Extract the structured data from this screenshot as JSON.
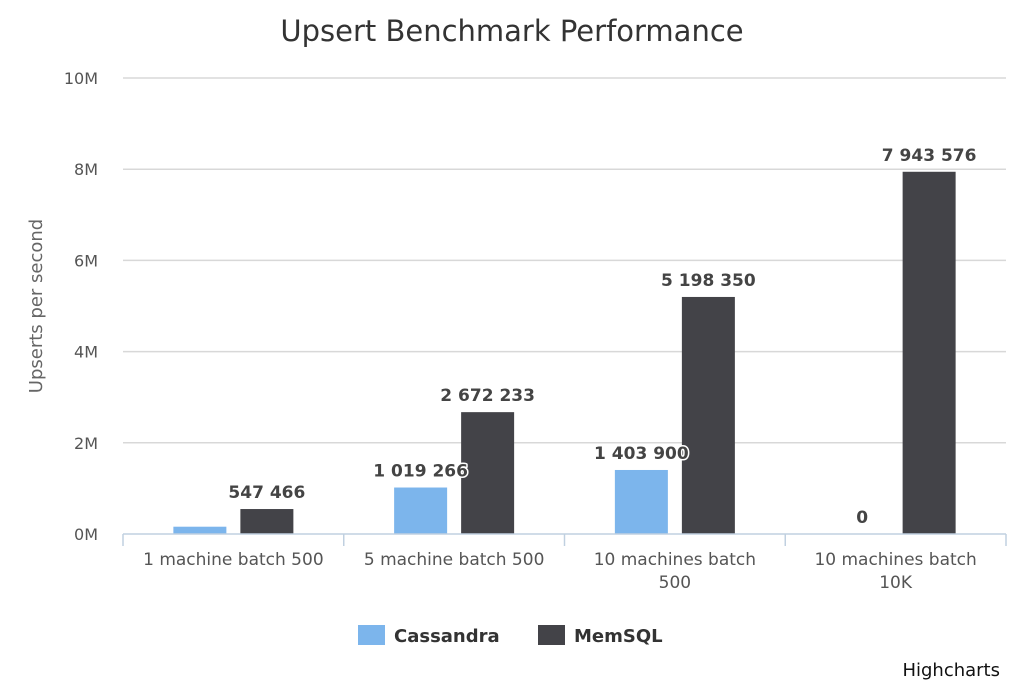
{
  "chart_data": {
    "type": "bar",
    "title": "Upsert Benchmark Performance",
    "xlabel": "",
    "ylabel": "Upserts per second",
    "categories": [
      [
        "1 machine batch 500"
      ],
      [
        "5 machine batch 500"
      ],
      [
        "10 machines batch",
        "500"
      ],
      [
        "10 machines batch",
        "10K"
      ]
    ],
    "series": [
      {
        "name": "Cassandra",
        "color": "#7cb5ec",
        "values": [
          160000,
          1019266,
          1403900,
          0
        ],
        "data_labels": [
          "",
          "1 019 266",
          "1 403 900",
          "0"
        ]
      },
      {
        "name": "MemSQL",
        "color": "#434348",
        "values": [
          547466,
          2672233,
          5198350,
          7943576
        ],
        "data_labels": [
          "547 466",
          "2 672 233",
          "5 198 350",
          "7 943 576"
        ]
      }
    ],
    "ylim": [
      0,
      10000000
    ],
    "y_ticks": [
      {
        "value": 0,
        "label": "0M"
      },
      {
        "value": 2000000,
        "label": "2M"
      },
      {
        "value": 4000000,
        "label": "4M"
      },
      {
        "value": 6000000,
        "label": "6M"
      },
      {
        "value": 8000000,
        "label": "8M"
      },
      {
        "value": 10000000,
        "label": "10M"
      }
    ],
    "grid": true,
    "legend_position": "bottom-center"
  },
  "credits": "Highcharts"
}
